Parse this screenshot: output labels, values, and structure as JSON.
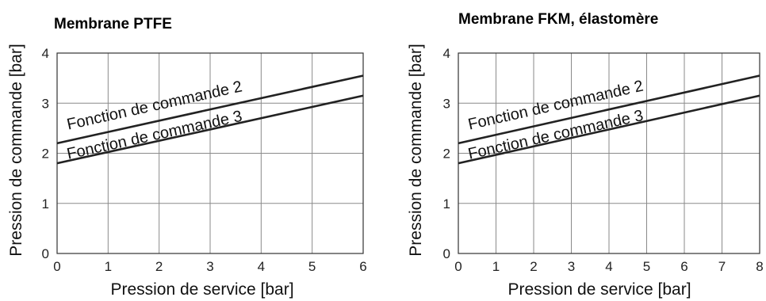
{
  "chart_data": [
    {
      "type": "line",
      "title": "Membrane PTFE",
      "xlabel": "Pression de service [bar]",
      "ylabel": "Pression de commande [bar]",
      "xlim": [
        0,
        6
      ],
      "ylim": [
        0,
        4
      ],
      "xticks": [
        "0",
        "1",
        "2",
        "3",
        "4",
        "5",
        "6"
      ],
      "yticks": [
        "0",
        "1",
        "2",
        "3",
        "4"
      ],
      "grid": true,
      "series": [
        {
          "name": "Fonction de commande 2",
          "x": [
            0,
            6
          ],
          "y": [
            2.2,
            3.55
          ]
        },
        {
          "name": "Fonction de commande 3",
          "x": [
            0,
            6
          ],
          "y": [
            1.8,
            3.15
          ]
        }
      ]
    },
    {
      "type": "line",
      "title": "Membrane FKM, élastomère",
      "xlabel": "Pression de service [bar]",
      "ylabel": "Pression de commande [bar]",
      "xlim": [
        0,
        8
      ],
      "ylim": [
        0,
        4
      ],
      "xticks": [
        "0",
        "1",
        "2",
        "3",
        "4",
        "5",
        "6",
        "7",
        "8"
      ],
      "yticks": [
        "0",
        "1",
        "2",
        "3",
        "4"
      ],
      "grid": true,
      "series": [
        {
          "name": "Fonction de commande 2",
          "x": [
            0,
            8
          ],
          "y": [
            2.2,
            3.55
          ]
        },
        {
          "name": "Fonction de commande 3",
          "x": [
            0,
            8
          ],
          "y": [
            1.8,
            3.15
          ]
        }
      ]
    }
  ]
}
